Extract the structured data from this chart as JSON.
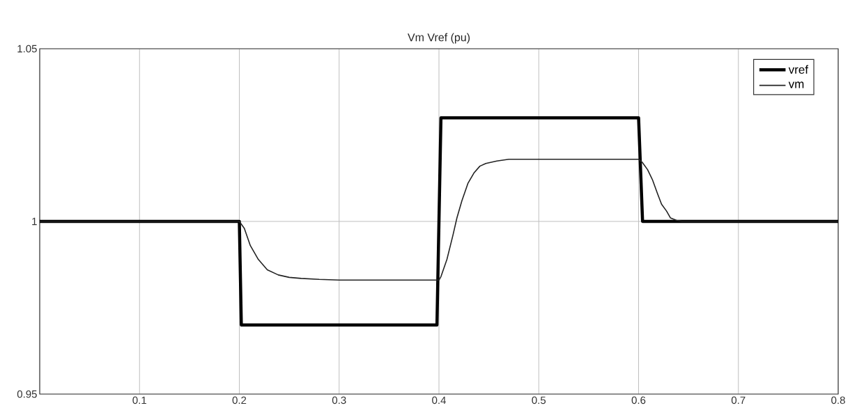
{
  "chart_data": {
    "type": "line",
    "title": "Vm Vref (pu)",
    "xlim": [
      0,
      0.8
    ],
    "ylim": [
      0.95,
      1.05
    ],
    "xticks": [
      {
        "value": 0,
        "label": null
      },
      0.1,
      0.2,
      0.3,
      0.4,
      0.5,
      0.6,
      0.7,
      0.8
    ],
    "yticks": [
      0.95,
      1,
      1.05
    ],
    "grid": true,
    "legend": "top right",
    "series": [
      {
        "name": "vref",
        "color": "#000000",
        "x": [
          0,
          0.2,
          0.202,
          0.398,
          0.402,
          0.6,
          0.604,
          0.8
        ],
        "values": [
          1,
          1,
          0.97,
          0.97,
          1.03,
          1.03,
          1,
          1
        ]
      },
      {
        "name": "vm",
        "color": "#222222",
        "x": [
          0,
          0.2,
          0.205,
          0.211,
          0.219,
          0.228,
          0.239,
          0.25,
          0.262,
          0.28,
          0.3,
          0.35,
          0.4,
          0.402,
          0.408,
          0.414,
          0.418,
          0.423,
          0.429,
          0.435,
          0.441,
          0.447,
          0.458,
          0.47,
          0.5,
          0.55,
          0.6,
          0.604,
          0.609,
          0.614,
          0.619,
          0.623,
          0.628,
          0.632,
          0.638,
          0.644,
          0.7,
          0.8
        ],
        "values": [
          1,
          1,
          0.998,
          0.993,
          0.989,
          0.986,
          0.9845,
          0.9838,
          0.9835,
          0.9832,
          0.983,
          0.983,
          0.983,
          0.984,
          0.989,
          0.996,
          1.001,
          1.006,
          1.011,
          1.014,
          1.016,
          1.0168,
          1.0175,
          1.018,
          1.018,
          1.018,
          1.018,
          1.017,
          1.015,
          1.012,
          1.008,
          1.005,
          1.003,
          1.001,
          1.0003,
          1,
          1,
          1
        ]
      }
    ]
  }
}
